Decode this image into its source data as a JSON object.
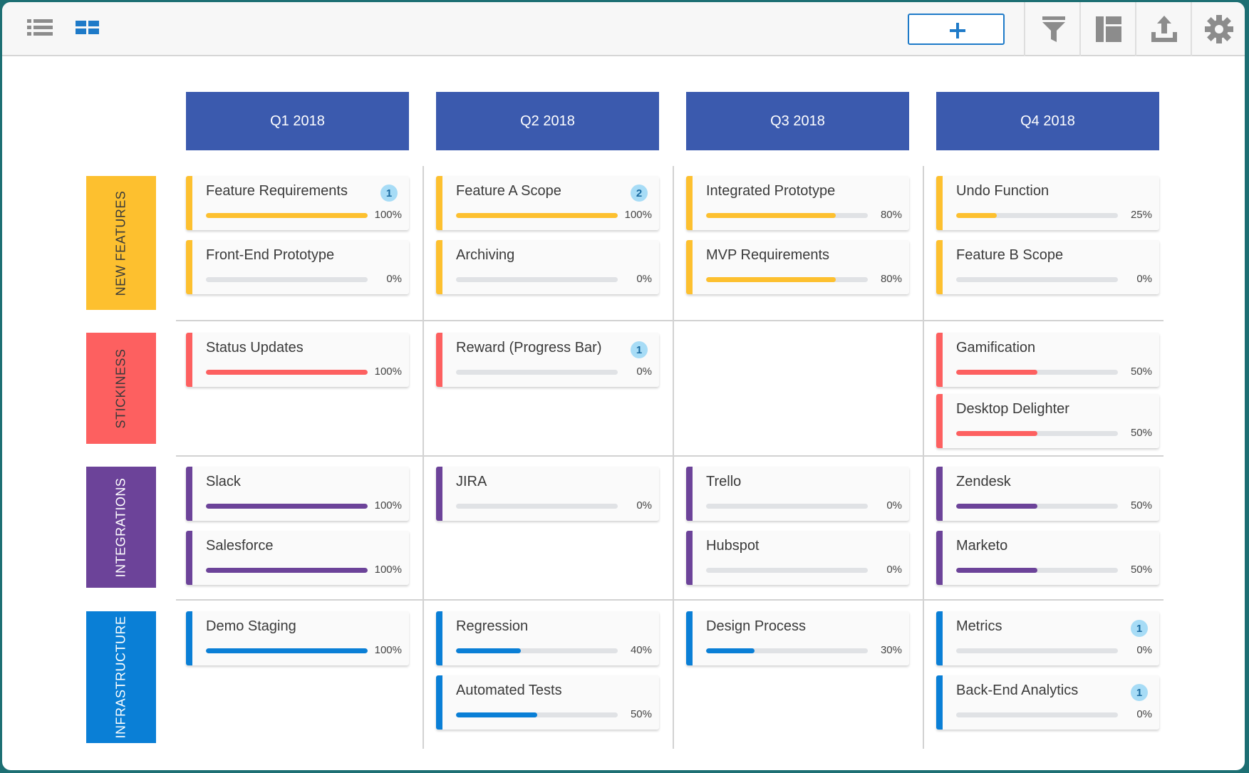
{
  "toolbar": {
    "left_icons": [
      "list-view-icon",
      "board-view-icon"
    ],
    "add_label": "+",
    "right_icons": [
      "filter-icon",
      "layout-icon",
      "export-icon",
      "settings-icon"
    ]
  },
  "colors": {
    "header": "#3b5aae",
    "accent": "#1e7ac8",
    "new_features": "#fdc02f",
    "stickiness": "#fd6060",
    "integrations": "#6c4399",
    "infrastructure": "#0a7fd6",
    "track": "#e0e2e5"
  },
  "quarters": [
    "Q1 2018",
    "Q2 2018",
    "Q3 2018",
    "Q4 2018"
  ],
  "lanes": [
    {
      "label": "NEW FEATURES",
      "key": "new_features"
    },
    {
      "label": "STICKINESS",
      "key": "stickiness"
    },
    {
      "label": "INTEGRATIONS",
      "key": "integrations"
    },
    {
      "label": "INFRASTRUCTURE",
      "key": "infrastructure"
    }
  ],
  "cards": [
    {
      "lane": 0,
      "quarter": 0,
      "title": "Feature Requirements",
      "progress": 100,
      "pct_label": "100%",
      "badge": "1"
    },
    {
      "lane": 0,
      "quarter": 0,
      "title": "Front-End Prototype",
      "progress": 0,
      "pct_label": "0%"
    },
    {
      "lane": 0,
      "quarter": 1,
      "title": "Feature A Scope",
      "progress": 100,
      "pct_label": "100%",
      "badge": "2"
    },
    {
      "lane": 0,
      "quarter": 1,
      "title": "Archiving",
      "progress": 0,
      "pct_label": "0%"
    },
    {
      "lane": 0,
      "quarter": 2,
      "title": "Integrated Prototype",
      "progress": 80,
      "pct_label": "80%"
    },
    {
      "lane": 0,
      "quarter": 2,
      "title": "MVP Requirements",
      "progress": 80,
      "pct_label": "80%"
    },
    {
      "lane": 0,
      "quarter": 3,
      "title": "Undo Function",
      "progress": 25,
      "pct_label": "25%"
    },
    {
      "lane": 0,
      "quarter": 3,
      "title": "Feature B Scope",
      "progress": 0,
      "pct_label": "0%"
    },
    {
      "lane": 1,
      "quarter": 0,
      "title": "Status Updates",
      "progress": 100,
      "pct_label": "100%"
    },
    {
      "lane": 1,
      "quarter": 1,
      "title": "Reward (Progress Bar)",
      "progress": 0,
      "pct_label": "0%",
      "badge": "1"
    },
    {
      "lane": 1,
      "quarter": 3,
      "title": "Gamification",
      "progress": 50,
      "pct_label": "50%"
    },
    {
      "lane": 1,
      "quarter": 3,
      "title": "Desktop Delighter",
      "progress": 50,
      "pct_label": "50%"
    },
    {
      "lane": 2,
      "quarter": 0,
      "title": "Slack",
      "progress": 100,
      "pct_label": "100%"
    },
    {
      "lane": 2,
      "quarter": 0,
      "title": "Salesforce",
      "progress": 100,
      "pct_label": "100%"
    },
    {
      "lane": 2,
      "quarter": 1,
      "title": "JIRA",
      "progress": 0,
      "pct_label": "0%"
    },
    {
      "lane": 2,
      "quarter": 2,
      "title": "Trello",
      "progress": 0,
      "pct_label": "0%"
    },
    {
      "lane": 2,
      "quarter": 2,
      "title": "Hubspot",
      "progress": 0,
      "pct_label": "0%"
    },
    {
      "lane": 2,
      "quarter": 3,
      "title": "Zendesk",
      "progress": 50,
      "pct_label": "50%"
    },
    {
      "lane": 2,
      "quarter": 3,
      "title": "Marketo",
      "progress": 50,
      "pct_label": "50%"
    },
    {
      "lane": 3,
      "quarter": 0,
      "title": "Demo Staging",
      "progress": 100,
      "pct_label": "100%"
    },
    {
      "lane": 3,
      "quarter": 1,
      "title": "Regression",
      "progress": 40,
      "pct_label": "40%"
    },
    {
      "lane": 3,
      "quarter": 1,
      "title": "Automated Tests",
      "progress": 50,
      "pct_label": "50%"
    },
    {
      "lane": 3,
      "quarter": 2,
      "title": "Design Process",
      "progress": 30,
      "pct_label": "30%"
    },
    {
      "lane": 3,
      "quarter": 3,
      "title": "Metrics",
      "progress": 0,
      "pct_label": "0%",
      "badge": "1"
    },
    {
      "lane": 3,
      "quarter": 3,
      "title": "Back-End Analytics",
      "progress": 0,
      "pct_label": "0%",
      "badge": "1"
    }
  ]
}
